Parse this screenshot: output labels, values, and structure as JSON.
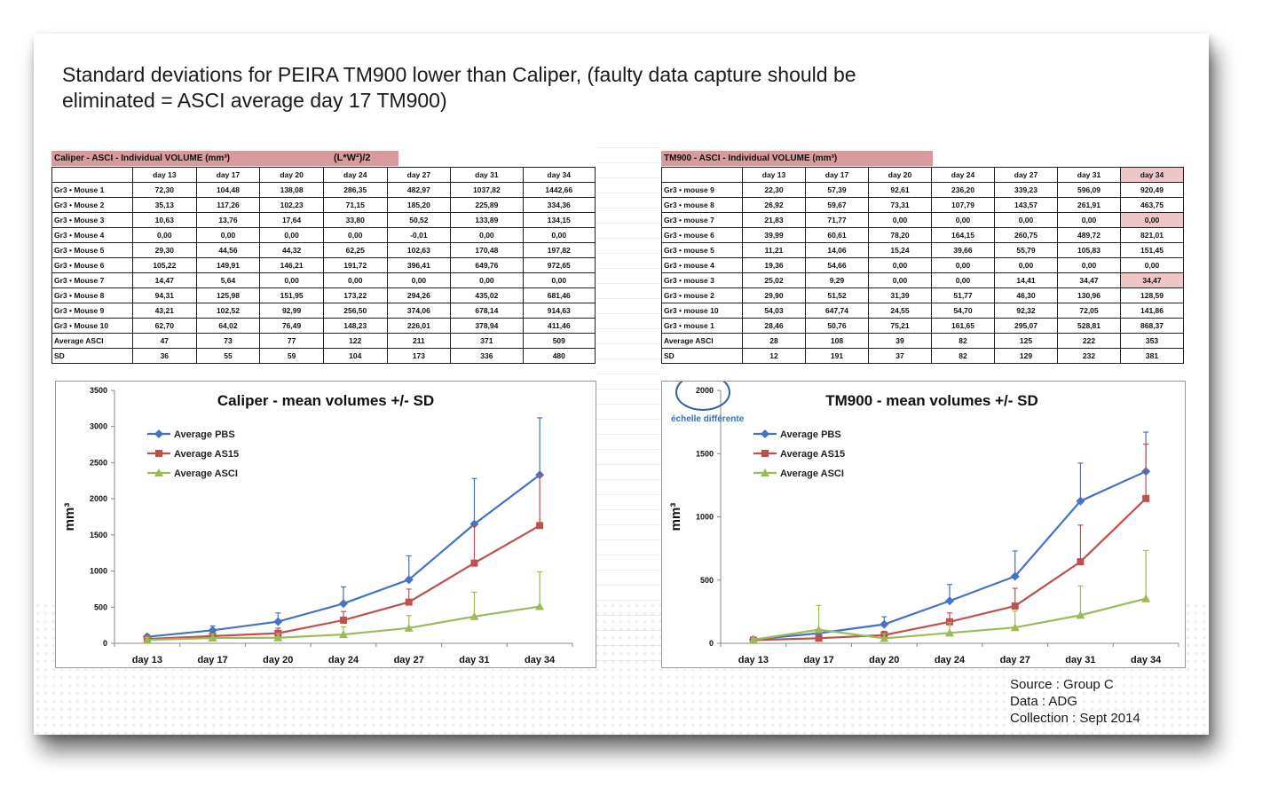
{
  "title": "Standard deviations for PEIRA TM900 lower than Caliper, (faulty data capture should be eliminated = ASCI average day 17 TM900)",
  "left_table": {
    "caption": "Caliper - ASCI - Individual VOLUME (mm³)",
    "formula": "(L*W²)/2",
    "headers": [
      "day 13",
      "day 17",
      "day 20",
      "day 24",
      "day 27",
      "day 31",
      "day 34"
    ],
    "rows": [
      {
        "label": "Gr3 • Mouse 1",
        "values": [
          "72,30",
          "104,48",
          "138,08",
          "286,35",
          "482,97",
          "1037,82",
          "1442,66"
        ]
      },
      {
        "label": "Gr3 • Mouse 2",
        "values": [
          "35,13",
          "117,26",
          "102,23",
          "71,15",
          "185,20",
          "225,89",
          "334,36"
        ]
      },
      {
        "label": "Gr3 • Mouse 3",
        "values": [
          "10,63",
          "13,76",
          "17,64",
          "33,80",
          "50,52",
          "133,89",
          "134,15"
        ]
      },
      {
        "label": "Gr3 • Mouse 4",
        "values": [
          "0,00",
          "0,00",
          "0,00",
          "0,00",
          "-0,01",
          "0,00",
          "0,00"
        ]
      },
      {
        "label": "Gr3 • Mouse 5",
        "values": [
          "29,30",
          "44,56",
          "44,32",
          "62,25",
          "102,63",
          "170,48",
          "197,82"
        ]
      },
      {
        "label": "Gr3 • Mouse 6",
        "values": [
          "105,22",
          "149,91",
          "146,21",
          "191,72",
          "396,41",
          "649,76",
          "972,65"
        ]
      },
      {
        "label": "Gr3 • Mouse 7",
        "values": [
          "14,47",
          "5,64",
          "0,00",
          "0,00",
          "0,00",
          "0,00",
          "0,00"
        ]
      },
      {
        "label": "Gr3 • Mouse 8",
        "values": [
          "94,31",
          "125,98",
          "151,95",
          "173,22",
          "294,26",
          "435,02",
          "681,46"
        ]
      },
      {
        "label": "Gr3 • Mouse 9",
        "values": [
          "43,21",
          "102,52",
          "92,99",
          "256,50",
          "374,06",
          "678,14",
          "914,63"
        ]
      },
      {
        "label": "Gr3 • Mouse 10",
        "values": [
          "62,70",
          "64,02",
          "76,49",
          "148,23",
          "226,01",
          "378,94",
          "411,46"
        ]
      },
      {
        "label": "Average ASCI",
        "values": [
          "47",
          "73",
          "77",
          "122",
          "211",
          "371",
          "509"
        ]
      },
      {
        "label": "SD",
        "values": [
          "36",
          "55",
          "59",
          "104",
          "173",
          "336",
          "480"
        ]
      }
    ]
  },
  "right_table": {
    "caption": "TM900 - ASCI - Individual VOLUME (mm³)",
    "headers": [
      "day 13",
      "day 17",
      "day 20",
      "day 24",
      "day 27",
      "day 31",
      "day 34"
    ],
    "rows": [
      {
        "label": "Gr3 • mouse 9",
        "values": [
          "22,30",
          "57,39",
          "92,61",
          "236,20",
          "339,23",
          "596,09",
          "920,49"
        ]
      },
      {
        "label": "Gr3 • mouse 8",
        "values": [
          "26,92",
          "59,67",
          "73,31",
          "107,79",
          "143,57",
          "261,91",
          "463,75"
        ]
      },
      {
        "label": "Gr3 • mouse 7",
        "values": [
          "21,83",
          "71,77",
          "0,00",
          "0,00",
          "0,00",
          "0,00",
          "0,00"
        ]
      },
      {
        "label": "Gr3 • mouse 6",
        "values": [
          "39,99",
          "60,61",
          "78,20",
          "164,15",
          "260,75",
          "489,72",
          "821,01"
        ]
      },
      {
        "label": "Gr3 • mouse 5",
        "values": [
          "11,21",
          "14,06",
          "15,24",
          "39,66",
          "55,79",
          "105,83",
          "151,45"
        ]
      },
      {
        "label": "Gr3 • mouse 4",
        "values": [
          "19,36",
          "54,66",
          "0,00",
          "0,00",
          "0,00",
          "0,00",
          "0,00"
        ]
      },
      {
        "label": "Gr3 • mouse 3",
        "values": [
          "25,02",
          "9,29",
          "0,00",
          "0,00",
          "14,41",
          "34,47",
          "34,47"
        ]
      },
      {
        "label": "Gr3 • mouse 2",
        "values": [
          "29,90",
          "51,52",
          "31,39",
          "51,77",
          "46,30",
          "130,96",
          "128,59"
        ]
      },
      {
        "label": "Gr3 • mouse 10",
        "values": [
          "54,03",
          "647,74",
          "24,55",
          "54,70",
          "92,32",
          "72,05",
          "141,86"
        ]
      },
      {
        "label": "Gr3 • mouse 1",
        "values": [
          "28,46",
          "50,76",
          "75,21",
          "161,65",
          "295,07",
          "528,81",
          "868,37"
        ]
      },
      {
        "label": "Average ASCI",
        "values": [
          "28",
          "108",
          "39",
          "82",
          "125",
          "222",
          "353"
        ]
      },
      {
        "label": "SD",
        "values": [
          "12",
          "191",
          "37",
          "82",
          "129",
          "232",
          "381"
        ]
      }
    ]
  },
  "annotation": "échelle différente",
  "source": {
    "line1": "Source : Group C",
    "line2": "Data : ADG",
    "line3": "Collection : Sept 2014"
  },
  "colors": {
    "pbs": "#4472c4",
    "as15": "#c0504d",
    "asci": "#9bbb59",
    "caption_bg": "#d99a9d",
    "highlight": "#eec6c8"
  },
  "chart_data": [
    {
      "type": "line",
      "title": "Caliper - mean volumes +/- SD",
      "ylabel": "mm³",
      "categories": [
        "day 13",
        "day 17",
        "day 20",
        "day 24",
        "day 27",
        "day 31",
        "day 34"
      ],
      "ylim": [
        0,
        3500
      ],
      "yticks": [
        0,
        500,
        1000,
        1500,
        2000,
        2500,
        3000,
        3500
      ],
      "legend": "top-left",
      "error_bars": "upper",
      "series": [
        {
          "name": "Average PBS",
          "color": "#4472c4",
          "marker": "diamond",
          "values": [
            90,
            180,
            300,
            550,
            880,
            1650,
            2330
          ],
          "sd": [
            30,
            60,
            120,
            230,
            330,
            630,
            790
          ]
        },
        {
          "name": "Average AS15",
          "color": "#c0504d",
          "marker": "square",
          "values": [
            60,
            100,
            140,
            320,
            570,
            1110,
            1630
          ],
          "sd": [
            20,
            40,
            70,
            120,
            180,
            520,
            680
          ]
        },
        {
          "name": "Average ASCI",
          "color": "#9bbb59",
          "marker": "triangle",
          "values": [
            47,
            73,
            77,
            122,
            211,
            371,
            509
          ],
          "sd": [
            36,
            55,
            59,
            104,
            173,
            336,
            480
          ]
        }
      ]
    },
    {
      "type": "line",
      "title": "TM900 - mean volumes +/- SD",
      "ylabel": "mm³",
      "categories": [
        "day 13",
        "day 17",
        "day 20",
        "day 24",
        "day 27",
        "day 31",
        "day 34"
      ],
      "ylim": [
        0,
        2000
      ],
      "yticks": [
        0,
        500,
        1000,
        1500,
        2000
      ],
      "legend": "top-left",
      "error_bars": "upper",
      "series": [
        {
          "name": "Average PBS",
          "color": "#4472c4",
          "marker": "diamond",
          "values": [
            30,
            80,
            150,
            335,
            530,
            1125,
            1360
          ],
          "sd": [
            10,
            30,
            60,
            130,
            200,
            300,
            310
          ]
        },
        {
          "name": "Average AS15",
          "color": "#c0504d",
          "marker": "square",
          "values": [
            25,
            40,
            65,
            170,
            295,
            645,
            1145
          ],
          "sd": [
            10,
            20,
            30,
            70,
            140,
            290,
            430
          ]
        },
        {
          "name": "Average ASCI",
          "color": "#9bbb59",
          "marker": "triangle",
          "values": [
            28,
            108,
            39,
            82,
            125,
            222,
            353
          ],
          "sd": [
            12,
            191,
            37,
            82,
            129,
            232,
            381
          ]
        }
      ]
    }
  ]
}
